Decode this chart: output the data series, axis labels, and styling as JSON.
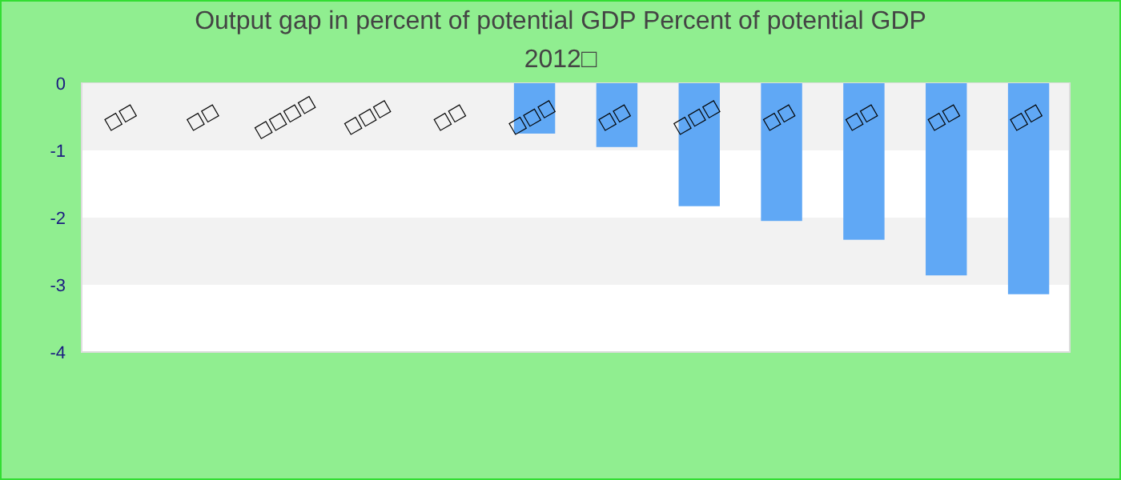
{
  "chart_data": {
    "type": "bar",
    "title": "Output gap in percent of potential GDP  Percent of potential GDP",
    "subtitle": "2012□",
    "categories": [
      "□□",
      "□□",
      "□□□□",
      "□□□",
      "□□",
      "□□□",
      "□□",
      "□□□",
      "□□",
      "□□",
      "□□",
      "□□"
    ],
    "values": [
      null,
      null,
      null,
      null,
      null,
      -0.75,
      -0.95,
      -1.83,
      -2.05,
      -2.33,
      -2.86,
      -3.14
    ],
    "color": "#60a8f5",
    "ylim": [
      -4,
      0
    ],
    "yticks": [
      0,
      -1,
      -2,
      -3,
      -4
    ]
  }
}
